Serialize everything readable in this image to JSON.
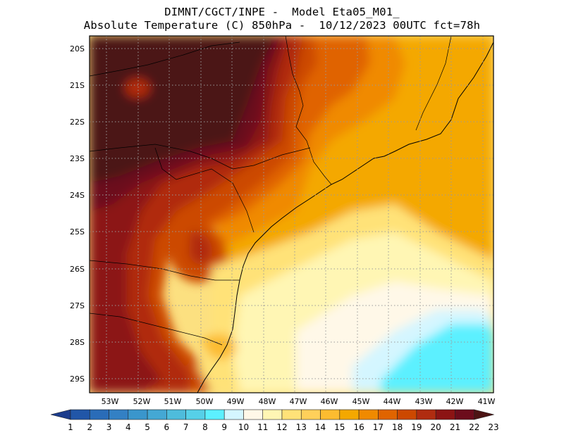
{
  "header": {
    "line1": "DIMNT/CGCT/INPE -  Model Eta05_M01_",
    "line2": "Absolute Temperature (C) 850hPa -  10/12/2023 00UTC fct=78h"
  },
  "map": {
    "lat_ticks": [
      "20S",
      "21S",
      "22S",
      "23S",
      "24S",
      "25S",
      "26S",
      "27S",
      "28S",
      "29S"
    ],
    "lon_ticks": [
      "53W",
      "52W",
      "51W",
      "50W",
      "49W",
      "48W",
      "47W",
      "46W",
      "45W",
      "44W",
      "43W",
      "42W",
      "41W"
    ]
  },
  "colorbar": {
    "labels": [
      "1",
      "2",
      "3",
      "4",
      "5",
      "6",
      "7",
      "8",
      "9",
      "10",
      "11",
      "12",
      "13",
      "14",
      "15",
      "16",
      "17",
      "18",
      "19",
      "20",
      "21",
      "22",
      "23"
    ],
    "colors": [
      "#1c3c8c",
      "#2156a8",
      "#2a6cb8",
      "#3380c4",
      "#3a96cc",
      "#44a8d4",
      "#4ebcdc",
      "#56d0e8",
      "#5cf0ff",
      "#d4f6ff",
      "#fff8e8",
      "#fff6b4",
      "#ffe278",
      "#ffd05a",
      "#fcbc30",
      "#f4a800",
      "#f08a00",
      "#e06400",
      "#cc4800",
      "#b02c10",
      "#8c1414",
      "#6c0c1c",
      "#4c1414"
    ]
  }
}
